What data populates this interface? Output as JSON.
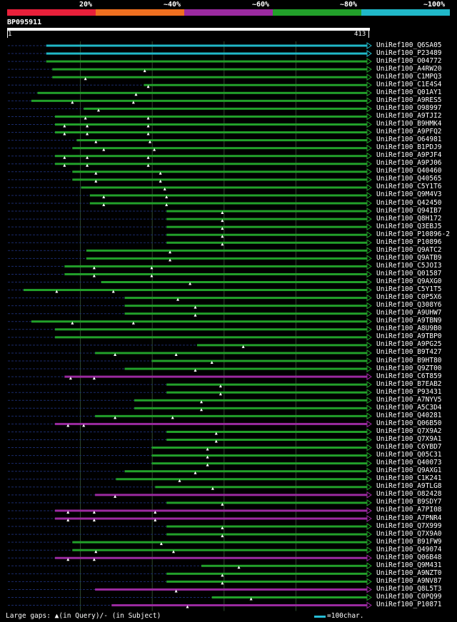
{
  "legend": {
    "ticks": [
      "20%",
      "~40%",
      "~60%",
      "~80%",
      "~100%"
    ],
    "colors": [
      "#e8203a",
      "#f07020",
      "#9b2aa0",
      "#22a02a",
      "#20b8c8"
    ]
  },
  "query": {
    "id": "BP095911",
    "start": "1",
    "end": "413",
    "length": 413
  },
  "footer": {
    "gaps_text": "Large gaps: ▲(in Query)/- (in Subject)",
    "scale_text": "=100char."
  },
  "hits": [
    {
      "name": "UniRef100_Q6SA05",
      "start": 45,
      "cat": 4,
      "tri": []
    },
    {
      "name": "UniRef100_P23489",
      "start": 45,
      "cat": 4,
      "tri": []
    },
    {
      "name": "UniRef100_O04772",
      "start": 45,
      "cat": 3,
      "tri": []
    },
    {
      "name": "UniRef100_A4RW20",
      "start": 52,
      "cat": 3,
      "tri": [
        158
      ]
    },
    {
      "name": "UniRef100_C1MPQ3",
      "start": 52,
      "cat": 3,
      "tri": [
        90
      ]
    },
    {
      "name": "UniRef100_C1E4S4",
      "start": 157,
      "cat": 3,
      "tri": [
        162
      ]
    },
    {
      "name": "UniRef100_Q01AY1",
      "start": 35,
      "cat": 3,
      "tri": [
        148
      ]
    },
    {
      "name": "UniRef100_A9RES5",
      "start": 28,
      "cat": 3,
      "tri": [
        75,
        145
      ]
    },
    {
      "name": "UniRef100_O98997",
      "start": 88,
      "cat": 3,
      "tri": [
        105
      ]
    },
    {
      "name": "UniRef100_A9TJI2",
      "start": 55,
      "cat": 3,
      "tri": [
        90,
        162
      ]
    },
    {
      "name": "UniRef100_B9HMK4",
      "start": 55,
      "cat": 3,
      "tri": [
        66,
        92,
        162
      ]
    },
    {
      "name": "UniRef100_A9PFQ2",
      "start": 55,
      "cat": 3,
      "tri": [
        66,
        92,
        162
      ]
    },
    {
      "name": "UniRef100_O64981",
      "start": 80,
      "cat": 3,
      "tri": [
        102,
        164
      ]
    },
    {
      "name": "UniRef100_B1PDJ9",
      "start": 75,
      "cat": 3,
      "tri": [
        111,
        169
      ]
    },
    {
      "name": "UniRef100_A9PJF4",
      "start": 55,
      "cat": 3,
      "tri": [
        66,
        92,
        162
      ]
    },
    {
      "name": "UniRef100_A9PJ06",
      "start": 55,
      "cat": 3,
      "tri": [
        66,
        92,
        162
      ]
    },
    {
      "name": "UniRef100_Q40460",
      "start": 75,
      "cat": 3,
      "tri": [
        102,
        176
      ]
    },
    {
      "name": "UniRef100_Q40565",
      "start": 75,
      "cat": 3,
      "tri": [
        102,
        176
      ]
    },
    {
      "name": "UniRef100_C5Y1T6",
      "start": 85,
      "cat": 3,
      "tri": [
        181
      ]
    },
    {
      "name": "UniRef100_Q9M4V3",
      "start": 95,
      "cat": 3,
      "tri": [
        111,
        183
      ]
    },
    {
      "name": "UniRef100_Q42450",
      "start": 95,
      "cat": 3,
      "tri": [
        111,
        183
      ]
    },
    {
      "name": "UniRef100_Q94IB7",
      "start": 183,
      "cat": 3,
      "tri": [
        247
      ]
    },
    {
      "name": "UniRef100_Q8H172",
      "start": 183,
      "cat": 3,
      "tri": [
        247
      ]
    },
    {
      "name": "UniRef100_Q3EBJ5",
      "start": 183,
      "cat": 3,
      "tri": [
        247
      ]
    },
    {
      "name": "UniRef100_P10896-2",
      "start": 183,
      "cat": 3,
      "tri": [
        247
      ]
    },
    {
      "name": "UniRef100_P10896",
      "start": 183,
      "cat": 3,
      "tri": [
        247
      ]
    },
    {
      "name": "UniRef100_Q9ATC2",
      "start": 91,
      "cat": 3,
      "tri": [
        187
      ]
    },
    {
      "name": "UniRef100_Q9ATB9",
      "start": 91,
      "cat": 3,
      "tri": [
        187
      ]
    },
    {
      "name": "UniRef100_C5JOI3",
      "start": 66,
      "cat": 3,
      "tri": [
        100,
        166
      ]
    },
    {
      "name": "UniRef100_Q01587",
      "start": 66,
      "cat": 3,
      "tri": [
        100,
        166
      ]
    },
    {
      "name": "UniRef100_Q9AXG0",
      "start": 108,
      "cat": 3,
      "tri": [
        210
      ]
    },
    {
      "name": "UniRef100_C5Y1T5",
      "start": 19,
      "cat": 3,
      "tri": [
        57,
        122
      ]
    },
    {
      "name": "UniRef100_C0P5X6",
      "start": 135,
      "cat": 3,
      "tri": [
        196
      ]
    },
    {
      "name": "UniRef100_Q308Y6",
      "start": 135,
      "cat": 3,
      "tri": [
        216
      ]
    },
    {
      "name": "UniRef100_A9UHW7",
      "start": 135,
      "cat": 3,
      "tri": [
        216
      ]
    },
    {
      "name": "UniRef100_A9TBN9",
      "start": 28,
      "cat": 3,
      "tri": [
        75,
        145
      ]
    },
    {
      "name": "UniRef100_A8U9B0",
      "start": 55,
      "cat": 3,
      "tri": []
    },
    {
      "name": "UniRef100_A9TBP0",
      "start": 55,
      "cat": 3,
      "tri": []
    },
    {
      "name": "UniRef100_A9PG25",
      "start": 218,
      "cat": 3,
      "tri": [
        271
      ]
    },
    {
      "name": "UniRef100_B9T427",
      "start": 101,
      "cat": 3,
      "tri": [
        124,
        194
      ]
    },
    {
      "name": "UniRef100_B9HT80",
      "start": 166,
      "cat": 3,
      "tri": [
        235
      ]
    },
    {
      "name": "UniRef100_Q9ZT00",
      "start": 135,
      "cat": 3,
      "tri": [
        216
      ]
    },
    {
      "name": "UniRef100_C6T859",
      "start": 66,
      "cat": 2,
      "tri": [
        73,
        100
      ]
    },
    {
      "name": "UniRef100_B7EAB2",
      "start": 183,
      "cat": 3,
      "tri": [
        245
      ]
    },
    {
      "name": "UniRef100_P93431",
      "start": 183,
      "cat": 3,
      "tri": [
        245
      ]
    },
    {
      "name": "UniRef100_A7NYV5",
      "start": 146,
      "cat": 3,
      "tri": [
        223
      ]
    },
    {
      "name": "UniRef100_A5C3D4",
      "start": 146,
      "cat": 3,
      "tri": [
        223
      ]
    },
    {
      "name": "UniRef100_Q40281",
      "start": 101,
      "cat": 3,
      "tri": [
        124,
        190
      ]
    },
    {
      "name": "UniRef100_Q06B50",
      "start": 55,
      "cat": 2,
      "tri": [
        70,
        88
      ]
    },
    {
      "name": "UniRef100_Q7X9A2",
      "start": 183,
      "cat": 3,
      "tri": [
        240
      ]
    },
    {
      "name": "UniRef100_Q7X9A1",
      "start": 183,
      "cat": 3,
      "tri": [
        240
      ]
    },
    {
      "name": "UniRef100_C6YBD7",
      "start": 166,
      "cat": 3,
      "tri": [
        230
      ]
    },
    {
      "name": "UniRef100_Q05C31",
      "start": 166,
      "cat": 3,
      "tri": [
        230
      ]
    },
    {
      "name": "UniRef100_Q40073",
      "start": 166,
      "cat": 3,
      "tri": [
        230
      ]
    },
    {
      "name": "UniRef100_Q9AXG1",
      "start": 135,
      "cat": 3,
      "tri": [
        216
      ]
    },
    {
      "name": "UniRef100_C1K241",
      "start": 125,
      "cat": 3,
      "tri": [
        198
      ]
    },
    {
      "name": "UniRef100_A9TLG8",
      "start": 170,
      "cat": 3,
      "tri": [
        236
      ]
    },
    {
      "name": "UniRef100_O82428",
      "start": 101,
      "cat": 2,
      "tri": [
        124
      ]
    },
    {
      "name": "UniRef100_B9SDY7",
      "start": 183,
      "cat": 3,
      "tri": [
        247
      ]
    },
    {
      "name": "UniRef100_A7PI08",
      "start": 55,
      "cat": 2,
      "tri": [
        70,
        100,
        170
      ]
    },
    {
      "name": "UniRef100_A7PNR4",
      "start": 55,
      "cat": 2,
      "tri": [
        70,
        100,
        170
      ]
    },
    {
      "name": "UniRef100_Q7X999",
      "start": 183,
      "cat": 3,
      "tri": [
        247
      ]
    },
    {
      "name": "UniRef100_Q7X9A0",
      "start": 183,
      "cat": 3,
      "tri": [
        247
      ]
    },
    {
      "name": "UniRef100_B91FW9",
      "start": 75,
      "cat": 3,
      "tri": [
        177
      ]
    },
    {
      "name": "UniRef100_Q49074",
      "start": 75,
      "cat": 3,
      "tri": [
        102,
        191
      ]
    },
    {
      "name": "UniRef100_Q06B48",
      "start": 55,
      "cat": 2,
      "tri": [
        70,
        100
      ]
    },
    {
      "name": "UniRef100_Q9M431",
      "start": 223,
      "cat": 3,
      "tri": [
        266
      ]
    },
    {
      "name": "UniRef100_A9NZT0",
      "start": 183,
      "cat": 3,
      "tri": [
        247
      ]
    },
    {
      "name": "UniRef100_A9NV87",
      "start": 183,
      "cat": 3,
      "tri": [
        247
      ]
    },
    {
      "name": "UniRef100_Q8L5T3",
      "start": 101,
      "cat": 2,
      "tri": [
        194
      ]
    },
    {
      "name": "UniRef100_C0PQ99",
      "start": 235,
      "cat": 3,
      "tri": [
        280
      ]
    },
    {
      "name": "UniRef100_P10871",
      "start": 120,
      "cat": 2,
      "tri": [
        207
      ]
    }
  ]
}
